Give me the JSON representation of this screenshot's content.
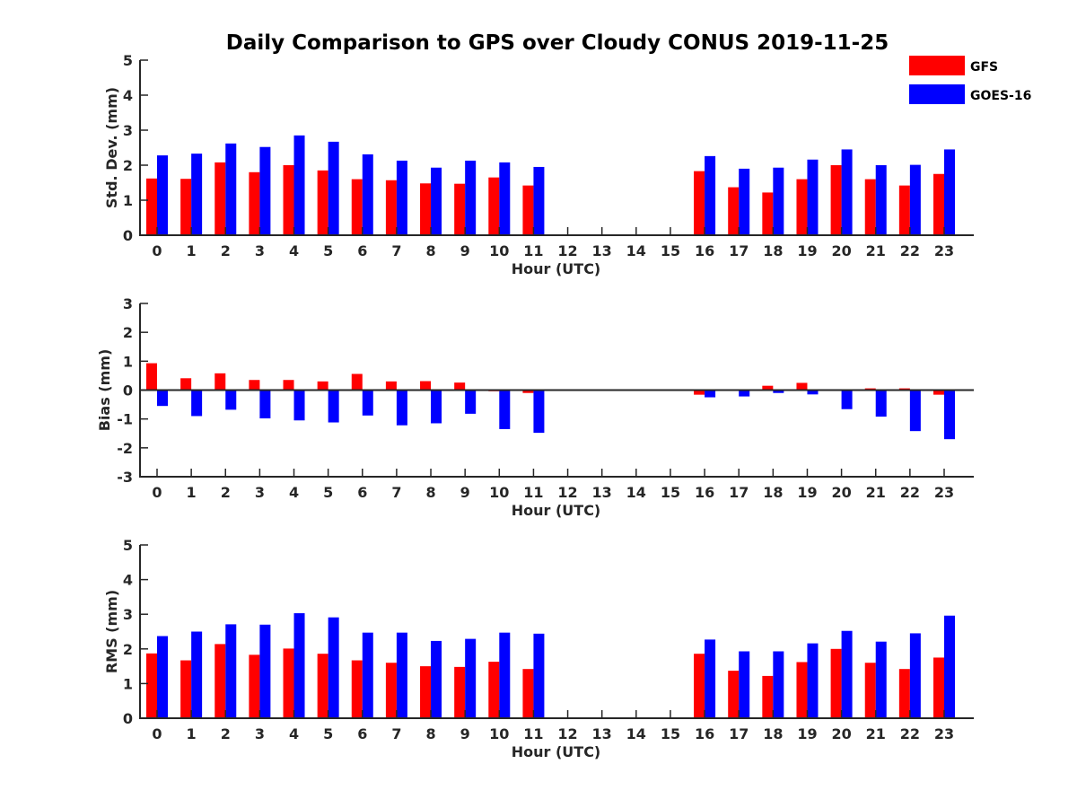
{
  "figure": {
    "title": "Daily Comparison to GPS over Cloudy CONUS 2019-11-25",
    "background": "#ffffff",
    "axis_color": "#262626"
  },
  "legend": {
    "placement": "top-right",
    "items": [
      {
        "label": "GFS",
        "color": "#ff0000"
      },
      {
        "label": "GOES-16",
        "color": "#0000ff"
      }
    ]
  },
  "chart_data": [
    {
      "type": "bar",
      "xlabel": "Hour (UTC)",
      "ylabel": "Std. Dev. (mm)",
      "ylim": [
        0,
        5
      ],
      "yticks": [
        0,
        1,
        2,
        3,
        4,
        5
      ],
      "categories": [
        "0",
        "1",
        "2",
        "3",
        "4",
        "5",
        "6",
        "7",
        "8",
        "9",
        "10",
        "11",
        "12",
        "13",
        "14",
        "15",
        "16",
        "17",
        "18",
        "19",
        "20",
        "21",
        "22",
        "23"
      ],
      "series": [
        {
          "name": "GFS",
          "color": "#ff0000",
          "values": [
            1.62,
            1.61,
            2.08,
            1.8,
            2.0,
            1.85,
            1.6,
            1.57,
            1.48,
            1.47,
            1.65,
            1.42,
            null,
            null,
            null,
            null,
            1.83,
            1.37,
            1.22,
            1.6,
            2.0,
            1.6,
            1.42,
            1.75
          ]
        },
        {
          "name": "GOES-16",
          "color": "#0000ff",
          "values": [
            2.28,
            2.33,
            2.62,
            2.52,
            2.85,
            2.67,
            2.31,
            2.13,
            1.93,
            2.13,
            2.08,
            1.95,
            null,
            null,
            null,
            null,
            2.26,
            1.9,
            1.93,
            2.16,
            2.45,
            2.0,
            2.01,
            2.45
          ]
        }
      ]
    },
    {
      "type": "bar",
      "xlabel": "Hour (UTC)",
      "ylabel": "Bias (mm)",
      "ylim": [
        -3,
        3
      ],
      "yticks": [
        -3,
        -2,
        -1,
        0,
        1,
        2,
        3
      ],
      "zero_line": true,
      "categories": [
        "0",
        "1",
        "2",
        "3",
        "4",
        "5",
        "6",
        "7",
        "8",
        "9",
        "10",
        "11",
        "12",
        "13",
        "14",
        "15",
        "16",
        "17",
        "18",
        "19",
        "20",
        "21",
        "22",
        "23"
      ],
      "series": [
        {
          "name": "GFS",
          "color": "#ff0000",
          "values": [
            0.93,
            0.41,
            0.58,
            0.35,
            0.35,
            0.3,
            0.56,
            0.3,
            0.31,
            0.26,
            -0.04,
            -0.1,
            null,
            null,
            null,
            null,
            -0.16,
            -0.03,
            0.15,
            0.25,
            0.02,
            0.06,
            0.06,
            -0.16
          ]
        },
        {
          "name": "GOES-16",
          "color": "#0000ff",
          "values": [
            -0.55,
            -0.9,
            -0.68,
            -0.98,
            -1.05,
            -1.12,
            -0.88,
            -1.22,
            -1.15,
            -0.82,
            -1.35,
            -1.48,
            null,
            null,
            null,
            null,
            -0.25,
            -0.22,
            -0.1,
            -0.15,
            -0.66,
            -0.92,
            -1.42,
            -1.7
          ]
        }
      ]
    },
    {
      "type": "bar",
      "xlabel": "Hour (UTC)",
      "ylabel": "RMS (mm)",
      "ylim": [
        0,
        5
      ],
      "yticks": [
        0,
        1,
        2,
        3,
        4,
        5
      ],
      "categories": [
        "0",
        "1",
        "2",
        "3",
        "4",
        "5",
        "6",
        "7",
        "8",
        "9",
        "10",
        "11",
        "12",
        "13",
        "14",
        "15",
        "16",
        "17",
        "18",
        "19",
        "20",
        "21",
        "22",
        "23"
      ],
      "series": [
        {
          "name": "GFS",
          "color": "#ff0000",
          "values": [
            1.87,
            1.67,
            2.14,
            1.83,
            2.01,
            1.86,
            1.67,
            1.6,
            1.5,
            1.48,
            1.63,
            1.42,
            null,
            null,
            null,
            null,
            1.86,
            1.37,
            1.22,
            1.62,
            2.0,
            1.6,
            1.42,
            1.75
          ]
        },
        {
          "name": "GOES-16",
          "color": "#0000ff",
          "values": [
            2.37,
            2.5,
            2.71,
            2.7,
            3.03,
            2.91,
            2.47,
            2.47,
            2.23,
            2.29,
            2.47,
            2.44,
            null,
            null,
            null,
            null,
            2.27,
            1.93,
            1.93,
            2.16,
            2.52,
            2.21,
            2.45,
            2.96
          ]
        }
      ]
    }
  ]
}
